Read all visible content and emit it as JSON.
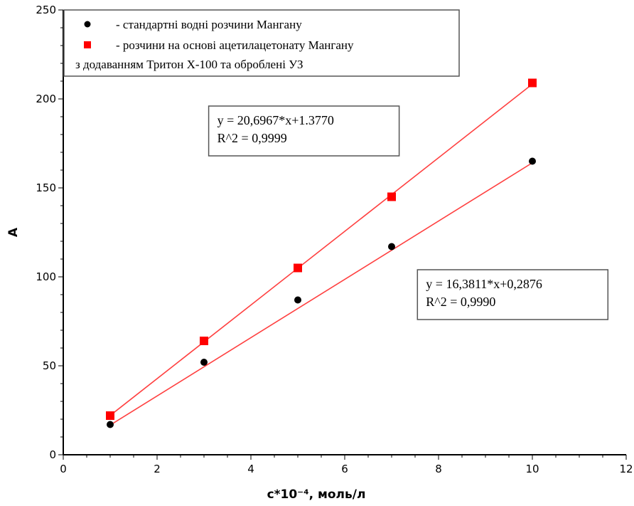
{
  "chart_data": {
    "type": "scatter",
    "xlabel": "c*10⁻⁴, моль/л",
    "ylabel": "A",
    "xlim": [
      0,
      12
    ],
    "ylim": [
      0,
      250
    ],
    "x_ticks": [
      0,
      2,
      4,
      6,
      8,
      10,
      12
    ],
    "y_ticks": [
      0,
      50,
      100,
      150,
      200,
      250
    ],
    "grid": false,
    "legend_position": "top-left",
    "legend": {
      "entries": [
        "- стандартні водні розчини Мангану",
        "- розчини на основі ацетилацетонату Мангану"
      ],
      "extra_line": "з додаванням Тритон Х-100 та оброблені УЗ"
    },
    "series": [
      {
        "name": "- стандартні водні розчини Мангану",
        "marker": "circle",
        "color": "#000000",
        "x": [
          1,
          3,
          5,
          7,
          10
        ],
        "y": [
          17,
          52,
          87,
          117,
          165
        ],
        "fit": {
          "slope": 16.3811,
          "intercept": 0.2876,
          "x_range": [
            1,
            10
          ],
          "color": "#ff4040"
        }
      },
      {
        "name": "- розчини на основі ацетилацетонату Мангану",
        "marker": "square",
        "color": "#ff0000",
        "x": [
          1,
          3,
          5,
          7,
          10
        ],
        "y": [
          22,
          64,
          105,
          145,
          209
        ],
        "fit": {
          "slope": 20.6967,
          "intercept": 1.377,
          "x_range": [
            1,
            10
          ],
          "color": "#ff4040"
        }
      }
    ],
    "annotations": [
      {
        "lines": [
          "y = 20,6967*x+1.3770",
          "R^2 = 0,9999"
        ],
        "anchor": [
          3.1,
          196
        ]
      },
      {
        "lines": [
          "y = 16,3811*x+0,2876",
          "R^2 = 0,9990"
        ],
        "anchor": [
          7.55,
          104
        ]
      }
    ]
  }
}
